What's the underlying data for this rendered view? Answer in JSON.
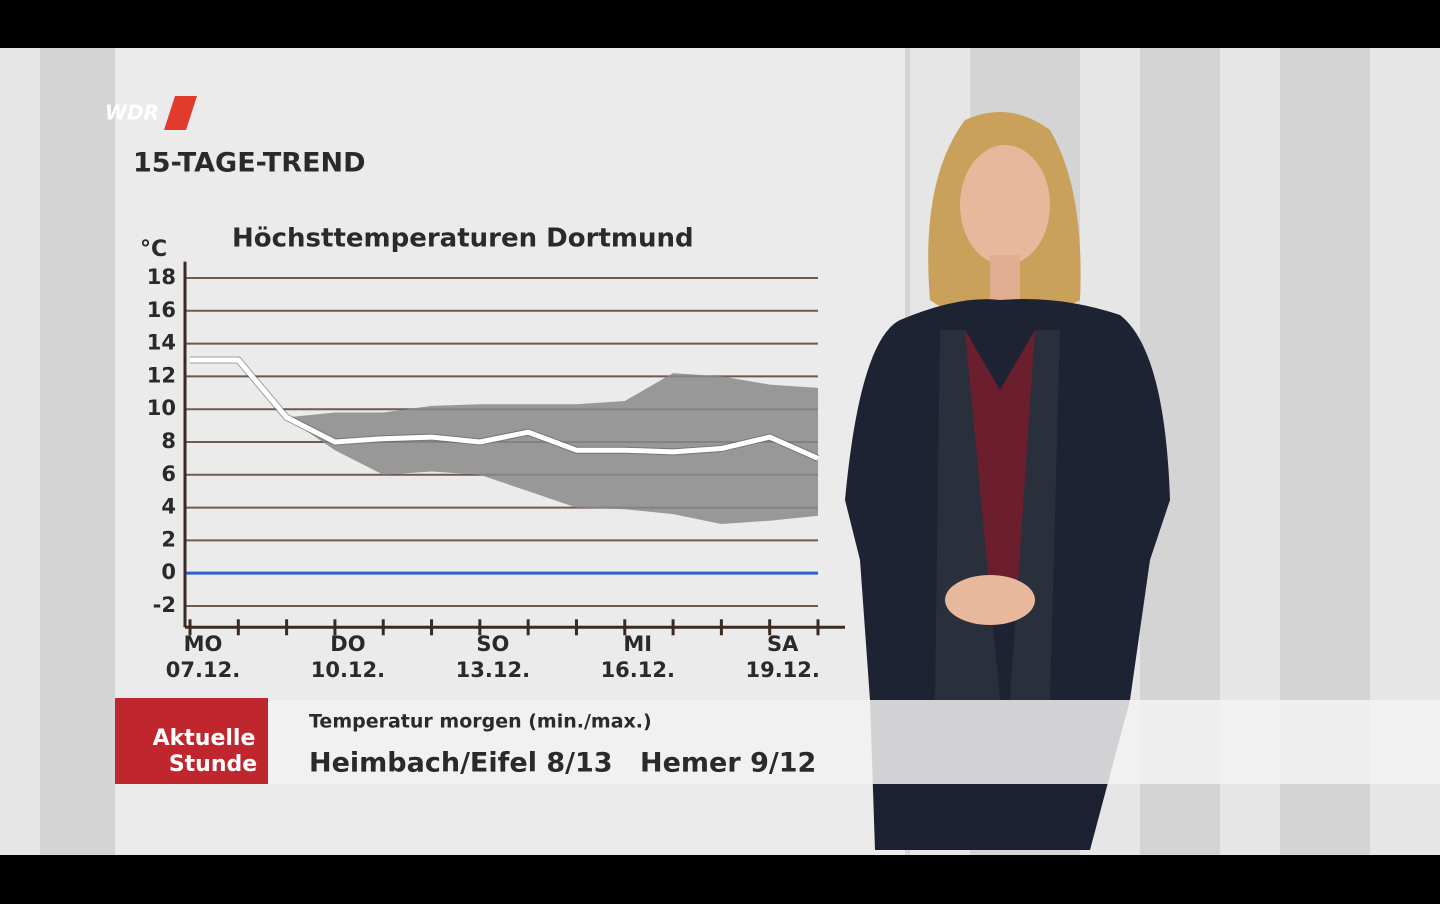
{
  "logo": "WDR",
  "chart_data": {
    "type": "line",
    "heading": "15-TAGE-TREND",
    "title": "Höchsttemperaturen Dortmund",
    "y_label": "°C",
    "categories": [
      "07.12.",
      null,
      null,
      "10.12.",
      null,
      null,
      "13.12.",
      null,
      null,
      "16.12.",
      null,
      null,
      "19.12.",
      null
    ],
    "weekday_labels": [
      "MO",
      null,
      null,
      "DO",
      null,
      null,
      "SO",
      null,
      null,
      "MI",
      null,
      null,
      "SA",
      null
    ],
    "line": {
      "color": "#ffffff",
      "values": [
        13,
        13,
        9.5,
        8,
        8.2,
        8.3,
        8,
        8.6,
        7.5,
        7.5,
        7.4,
        7.6,
        8.3,
        7
      ]
    },
    "band": {
      "color": "#8a8a8a",
      "lower": [
        null,
        null,
        9.5,
        7.5,
        6,
        6.2,
        6,
        5,
        4,
        3.9,
        3.6,
        3,
        3.2,
        3.5
      ],
      "upper": [
        null,
        null,
        9.5,
        9.8,
        9.8,
        10.2,
        10.3,
        10.3,
        10.3,
        10.5,
        12.2,
        12,
        11.5,
        11.3
      ]
    },
    "ylim": [
      -3.3,
      19
    ],
    "yticks": [
      -2,
      0,
      2,
      4,
      6,
      8,
      10,
      12,
      14,
      16,
      18
    ],
    "zero_line_color": "#2f5fd0",
    "grid": true
  },
  "ticker": {
    "badge": [
      "Aktuelle",
      "Stunde"
    ],
    "heading": "Temperatur morgen (min./max.)",
    "items": [
      "Heimbach/Eifel 8/13",
      "Hemer 9/12"
    ]
  }
}
